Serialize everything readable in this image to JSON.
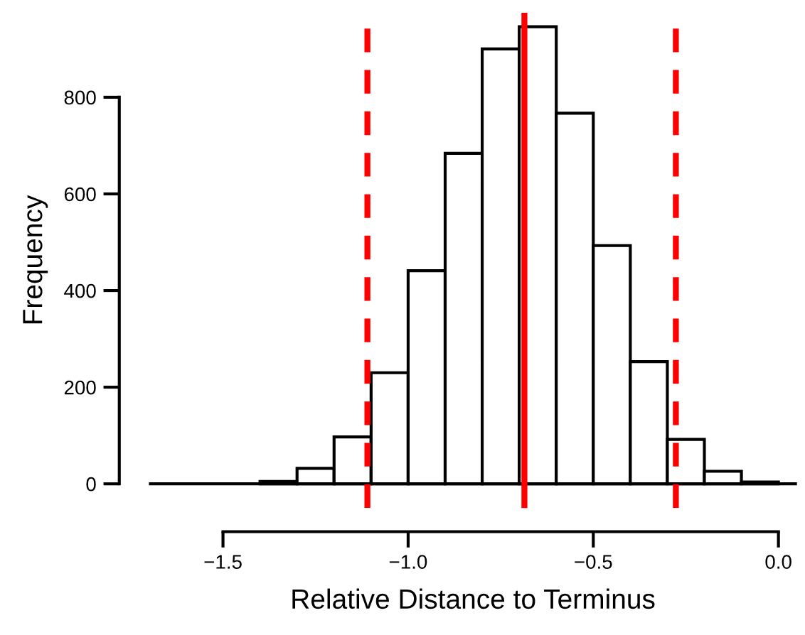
{
  "chart_data": {
    "type": "histogram",
    "xlabel": "Relative Distance to Terminus",
    "ylabel": "Frequency",
    "bins": [
      -1.4,
      -1.3,
      -1.2,
      -1.1,
      -1.0,
      -0.9,
      -0.8,
      -0.7,
      -0.6,
      -0.5,
      -0.4,
      -0.3,
      -0.2,
      -0.1,
      0.0
    ],
    "values": [
      5,
      32,
      97,
      230,
      441,
      684,
      900,
      946,
      767,
      493,
      253,
      92,
      26,
      4
    ],
    "color": "#ffffff",
    "xlim": [
      -1.7,
      0.05
    ],
    "ylim": [
      -50,
      975
    ],
    "xticks": [
      {
        "value": -1.5,
        "label": "−1.5"
      },
      {
        "value": -1.0,
        "label": "−1.0"
      },
      {
        "value": -0.5,
        "label": "−0.5"
      },
      {
        "value": 0.0,
        "label": "0.0"
      }
    ],
    "yticks": [
      0,
      200,
      400,
      600,
      800
    ],
    "grid": false,
    "ref_lines": [
      {
        "axis": "y",
        "value": 0,
        "color": "#000000",
        "line_style": "solid"
      },
      {
        "axis": "x",
        "value": -0.686,
        "color": "#ff0000",
        "line_style": "solid"
      },
      {
        "axis": "x",
        "value": -1.11,
        "color": "#ff0000",
        "line_style": "dashed"
      },
      {
        "axis": "x",
        "value": -0.277,
        "color": "#ff0000",
        "line_style": "dashed"
      }
    ]
  }
}
